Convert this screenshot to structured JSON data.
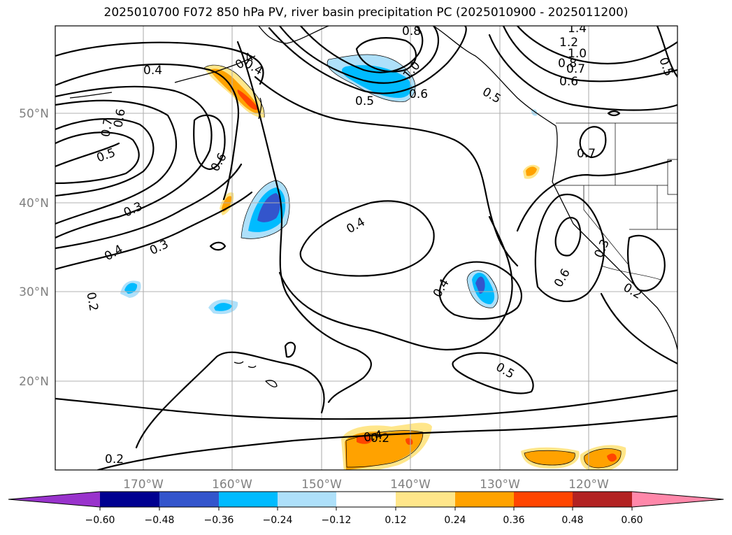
{
  "title": "2025010700 F072 850 hPa PV, river basin precipitation PC (2025010900 - 2025011200)",
  "axes": {
    "lon_ticks": [
      "170°W",
      "160°W",
      "150°W",
      "140°W",
      "130°W",
      "120°W"
    ],
    "lat_ticks": [
      "50°N",
      "40°N",
      "30°N",
      "20°N"
    ]
  },
  "contour_labels": [
    "0.4",
    "0.7",
    "0.6",
    "0.5",
    "0.6",
    "0.4",
    "0.4",
    "0.8",
    "1.4",
    "1.2",
    "1.0",
    "1.0",
    "0.6",
    "0.5",
    "0.5",
    "0.8",
    "0.7",
    "0.6",
    "0.5",
    "0.7",
    "0.3",
    "0.3",
    "0.4",
    "0.4",
    "0.4",
    "0.3",
    "0.6",
    "0.2",
    "0.2",
    "0.4",
    "0.5",
    "0.2",
    "0.2"
  ],
  "colorbar": {
    "colors": [
      "#9933cc",
      "#000090",
      "#3355cc",
      "#00bbff",
      "#aee0fa",
      "#ffffff",
      "#ffe68a",
      "#ffa200",
      "#ff4500",
      "#b22222",
      "#ff88aa"
    ],
    "tick_labels": [
      "−0.60",
      "−0.48",
      "−0.36",
      "−0.24",
      "−0.12",
      "0.12",
      "0.24",
      "0.36",
      "0.48",
      "0.60"
    ]
  },
  "legend_colors": {
    "neg_strong": "#3355cc",
    "neg_mid": "#00bbff",
    "neg_light": "#aee0fa",
    "pos_light": "#ffe68a",
    "pos_mid": "#ffa200",
    "pos_strong": "#ff4500"
  }
}
